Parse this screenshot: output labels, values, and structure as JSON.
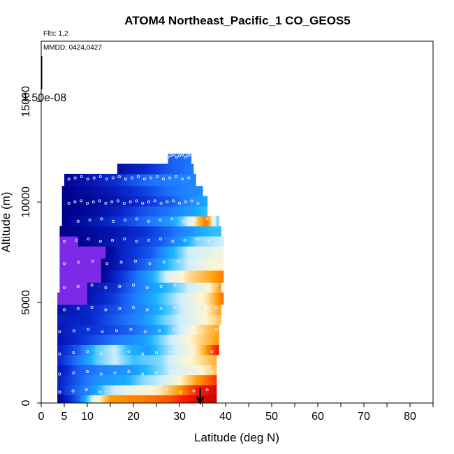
{
  "chart_data": {
    "type": "heatmap",
    "title": "ATOM4 Northeast_Pacific_1 CO_GEOS5",
    "flights_note": "Flts: 1,2",
    "date_note": "MMDD: 0424,0427",
    "xlabel": "Latitude (deg N)",
    "ylabel": "Altitude (m)",
    "xlim": [
      0,
      85
    ],
    "ylim": [
      0,
      18000
    ],
    "x_ticks": [
      0,
      5,
      10,
      20,
      30,
      40,
      50,
      60,
      70,
      80
    ],
    "x_minor_ticks": [
      15,
      25,
      35,
      45,
      55,
      65,
      75,
      85
    ],
    "y_ticks": [
      0,
      5000,
      10000,
      15000
    ],
    "scale_label": "1.50e-08",
    "marker_latitude": 34.5,
    "colors": {
      "violet": "#7d2ae8",
      "deep_blue": "#00008b",
      "blue": "#0a2fd6",
      "mid_blue": "#1f78ff",
      "light_blue": "#19b5ff",
      "pale": "#cdeeff",
      "light": "#fff6d0",
      "orange": "#ff9a00",
      "red": "#ff1a00",
      "dark_red": "#b50000"
    },
    "bands": [
      {
        "y0": 0,
        "y1": 400,
        "x0": 3.5,
        "x1": 38,
        "stops": [
          [
            3.5,
            0
          ],
          [
            8,
            0.2
          ],
          [
            12,
            0.6
          ],
          [
            15,
            0.75
          ],
          [
            22,
            0.78
          ],
          [
            28,
            0.82
          ],
          [
            33,
            0.92
          ],
          [
            38,
            0.98
          ]
        ]
      },
      {
        "y0": 400,
        "y1": 900,
        "x0": 3.5,
        "x1": 38,
        "stops": [
          [
            3.5,
            0.08
          ],
          [
            7,
            0.2
          ],
          [
            11,
            0.3
          ],
          [
            14,
            0.45
          ],
          [
            18,
            0.55
          ],
          [
            22,
            0.6
          ],
          [
            26,
            0.65
          ],
          [
            30,
            0.75
          ],
          [
            34,
            0.88
          ],
          [
            38,
            0.95
          ]
        ]
      },
      {
        "y0": 900,
        "y1": 1400,
        "x0": 3.5,
        "x1": 38,
        "stops": [
          [
            3.5,
            0.08
          ],
          [
            6,
            0.15
          ],
          [
            12,
            0.3
          ],
          [
            18,
            0.35
          ],
          [
            22,
            0.45
          ],
          [
            26,
            0.5
          ],
          [
            30,
            0.62
          ],
          [
            34,
            0.75
          ],
          [
            38,
            0.85
          ]
        ]
      },
      {
        "y0": 1400,
        "y1": 1900,
        "x0": 3.5,
        "x1": 38,
        "stops": [
          [
            3.5,
            0.05
          ],
          [
            8,
            0.2
          ],
          [
            14,
            0.28
          ],
          [
            20,
            0.32
          ],
          [
            26,
            0.45
          ],
          [
            30,
            0.55
          ],
          [
            34,
            0.6
          ],
          [
            38,
            0.7
          ]
        ]
      },
      {
        "y0": 1900,
        "y1": 2400,
        "x0": 3.5,
        "x1": 38,
        "stops": [
          [
            3.5,
            0.1
          ],
          [
            8,
            0.25
          ],
          [
            12,
            0.42
          ],
          [
            16,
            0.5
          ],
          [
            20,
            0.4
          ],
          [
            26,
            0.45
          ],
          [
            30,
            0.58
          ],
          [
            34,
            0.65
          ],
          [
            38,
            0.72
          ]
        ]
      },
      {
        "y0": 2400,
        "y1": 2900,
        "x0": 3.5,
        "x1": 38.5,
        "stops": [
          [
            3.5,
            0.08
          ],
          [
            8,
            0.2
          ],
          [
            12,
            0.42
          ],
          [
            16,
            0.5
          ],
          [
            19,
            0.38
          ],
          [
            23,
            0.32
          ],
          [
            27,
            0.45
          ],
          [
            31,
            0.55
          ],
          [
            35,
            0.7
          ],
          [
            38.5,
            0.9
          ]
        ]
      },
      {
        "y0": 2900,
        "y1": 3400,
        "x0": 3.5,
        "x1": 38.5,
        "stops": [
          [
            3.5,
            0.05
          ],
          [
            10,
            0.15
          ],
          [
            16,
            0.25
          ],
          [
            22,
            0.32
          ],
          [
            28,
            0.5
          ],
          [
            32,
            0.62
          ],
          [
            35,
            0.68
          ],
          [
            38.5,
            0.75
          ]
        ]
      },
      {
        "y0": 3400,
        "y1": 3900,
        "x0": 3.5,
        "x1": 38.5,
        "stops": [
          [
            3.5,
            0.06
          ],
          [
            8,
            0.12
          ],
          [
            14,
            0.15
          ],
          [
            20,
            0.22
          ],
          [
            26,
            0.35
          ],
          [
            30,
            0.5
          ],
          [
            34,
            0.65
          ],
          [
            38.5,
            0.74
          ]
        ]
      },
      {
        "y0": 3900,
        "y1": 4400,
        "x0": 3.5,
        "x1": 39,
        "stops": [
          [
            3.5,
            0.08
          ],
          [
            10,
            0.1
          ],
          [
            16,
            0.2
          ],
          [
            22,
            0.3
          ],
          [
            26,
            0.42
          ],
          [
            30,
            0.5
          ],
          [
            34,
            0.58
          ],
          [
            39,
            0.7
          ]
        ]
      },
      {
        "y0": 4400,
        "y1": 4900,
        "x0": 3.5,
        "x1": 39,
        "stops": [
          [
            3.5,
            0.05
          ],
          [
            10,
            0.1
          ],
          [
            16,
            0.18
          ],
          [
            22,
            0.28
          ],
          [
            28,
            0.42
          ],
          [
            32,
            0.55
          ],
          [
            35,
            0.6
          ],
          [
            39,
            0.74
          ]
        ]
      },
      {
        "y0": 4900,
        "y1": 5500,
        "x0": 3.5,
        "x1": 39.5,
        "stops": [
          [
            3.5,
            -0.5
          ],
          [
            8,
            -0.5
          ],
          [
            10,
            0.05
          ],
          [
            16,
            0.15
          ],
          [
            22,
            0.3
          ],
          [
            28,
            0.45
          ],
          [
            32,
            0.55
          ],
          [
            36,
            0.65
          ],
          [
            39.5,
            0.8
          ]
        ]
      },
      {
        "y0": 5500,
        "y1": 6000,
        "x0": 4,
        "x1": 39,
        "stops": [
          [
            4,
            -0.5
          ],
          [
            8,
            -0.5
          ],
          [
            10,
            0.05
          ],
          [
            16,
            0.12
          ],
          [
            22,
            0.28
          ],
          [
            28,
            0.4
          ],
          [
            32,
            0.5
          ],
          [
            36,
            0.6
          ],
          [
            39,
            0.75
          ]
        ]
      },
      {
        "y0": 6000,
        "y1": 6600,
        "x0": 4,
        "x1": 39.5,
        "stops": [
          [
            4,
            -0.5
          ],
          [
            11,
            -0.5
          ],
          [
            13,
            0.0
          ],
          [
            18,
            0.15
          ],
          [
            24,
            0.35
          ],
          [
            28,
            0.55
          ],
          [
            32,
            0.66
          ],
          [
            36,
            0.72
          ],
          [
            39.5,
            0.78
          ]
        ]
      },
      {
        "y0": 6600,
        "y1": 7200,
        "x0": 4,
        "x1": 39.5,
        "stops": [
          [
            4,
            -0.5
          ],
          [
            11,
            -0.5
          ],
          [
            13,
            0.0
          ],
          [
            18,
            0.1
          ],
          [
            24,
            0.25
          ],
          [
            28,
            0.4
          ],
          [
            32,
            0.5
          ],
          [
            36,
            0.6
          ],
          [
            39.5,
            0.62
          ]
        ]
      },
      {
        "y0": 7200,
        "y1": 7800,
        "x0": 4,
        "x1": 39.5,
        "stops": [
          [
            4,
            -0.5
          ],
          [
            12,
            -0.5
          ],
          [
            14,
            0.0
          ],
          [
            18,
            0.1
          ],
          [
            24,
            0.2
          ],
          [
            28,
            0.35
          ],
          [
            32,
            0.5
          ],
          [
            36,
            0.55
          ],
          [
            39.5,
            0.6
          ]
        ]
      },
      {
        "y0": 7800,
        "y1": 8300,
        "x0": 4,
        "x1": 39.5,
        "stops": [
          [
            4,
            -0.3
          ],
          [
            8,
            0.0
          ],
          [
            14,
            0.05
          ],
          [
            20,
            0.12
          ],
          [
            26,
            0.2
          ],
          [
            30,
            0.3
          ],
          [
            34,
            0.45
          ],
          [
            39.5,
            0.5
          ]
        ]
      },
      {
        "y0": 8300,
        "y1": 8800,
        "x0": 4,
        "x1": 39,
        "stops": [
          [
            4,
            0.0
          ],
          [
            10,
            0.02
          ],
          [
            16,
            0.06
          ],
          [
            22,
            0.12
          ],
          [
            28,
            0.22
          ],
          [
            32,
            0.3
          ],
          [
            36,
            0.38
          ],
          [
            39,
            0.4
          ]
        ]
      },
      {
        "y0": 8800,
        "y1": 9300,
        "x0": 4.5,
        "x1": 38.5,
        "stops": [
          [
            4.5,
            0.0
          ],
          [
            10,
            0.05
          ],
          [
            16,
            0.12
          ],
          [
            22,
            0.22
          ],
          [
            28,
            0.32
          ],
          [
            31,
            0.45
          ],
          [
            34,
            0.7
          ],
          [
            36,
            0.8
          ],
          [
            38.5,
            0.4
          ]
        ]
      },
      {
        "y0": 9300,
        "y1": 9800,
        "x0": 4.5,
        "x1": 36,
        "stops": [
          [
            4.5,
            0.0
          ],
          [
            10,
            0.02
          ],
          [
            16,
            0.08
          ],
          [
            22,
            0.18
          ],
          [
            28,
            0.25
          ],
          [
            32,
            0.32
          ],
          [
            36,
            0.4
          ]
        ]
      },
      {
        "y0": 9800,
        "y1": 10300,
        "x0": 4.5,
        "x1": 36,
        "stops": [
          [
            4.5,
            0.0
          ],
          [
            10,
            0.02
          ],
          [
            16,
            0.06
          ],
          [
            22,
            0.12
          ],
          [
            28,
            0.2
          ],
          [
            32,
            0.28
          ],
          [
            36,
            0.35
          ]
        ]
      },
      {
        "y0": 10300,
        "y1": 10800,
        "x0": 4.5,
        "x1": 35,
        "stops": [
          [
            4.5,
            0.0
          ],
          [
            10,
            0.03
          ],
          [
            16,
            0.08
          ],
          [
            22,
            0.15
          ],
          [
            28,
            0.24
          ],
          [
            35,
            0.3
          ]
        ]
      },
      {
        "y0": 10800,
        "y1": 11400,
        "x0": 5,
        "x1": 33.5,
        "stops": [
          [
            5,
            0.02
          ],
          [
            10,
            0.05
          ],
          [
            16,
            0.12
          ],
          [
            22,
            0.22
          ],
          [
            28,
            0.26
          ],
          [
            33.5,
            0.28
          ]
        ]
      },
      {
        "y0": 11400,
        "y1": 11900,
        "x0": 16.5,
        "x1": 33,
        "stops": [
          [
            16.5,
            0.04
          ],
          [
            22,
            0.1
          ],
          [
            28,
            0.2
          ],
          [
            33,
            0.26
          ]
        ]
      },
      {
        "y0": 11900,
        "y1": 12400,
        "x0": 27.5,
        "x1": 32.5,
        "stops": [
          [
            27.5,
            0.2
          ],
          [
            32.5,
            0.25
          ]
        ]
      }
    ],
    "observation_rows": [
      {
        "y": 12300,
        "x0": 27.5,
        "x1": 32.5,
        "n": 9
      },
      {
        "y": 11200,
        "x0": 6,
        "x1": 32,
        "n": 20
      },
      {
        "y": 10000,
        "x0": 6,
        "x1": 34,
        "n": 22
      },
      {
        "y": 9100,
        "x0": 8,
        "x1": 36,
        "n": 12
      },
      {
        "y": 8100,
        "x0": 5,
        "x1": 39,
        "n": 14
      },
      {
        "y": 7000,
        "x0": 5,
        "x1": 39,
        "n": 12
      },
      {
        "y": 5800,
        "x0": 5,
        "x1": 38,
        "n": 12
      },
      {
        "y": 4700,
        "x0": 5,
        "x1": 38,
        "n": 12
      },
      {
        "y": 3600,
        "x0": 4,
        "x1": 38,
        "n": 12
      },
      {
        "y": 2500,
        "x0": 4,
        "x1": 37,
        "n": 12
      },
      {
        "y": 1500,
        "x0": 4,
        "x1": 37,
        "n": 12
      },
      {
        "y": 600,
        "x0": 4,
        "x1": 36,
        "n": 12
      }
    ]
  }
}
